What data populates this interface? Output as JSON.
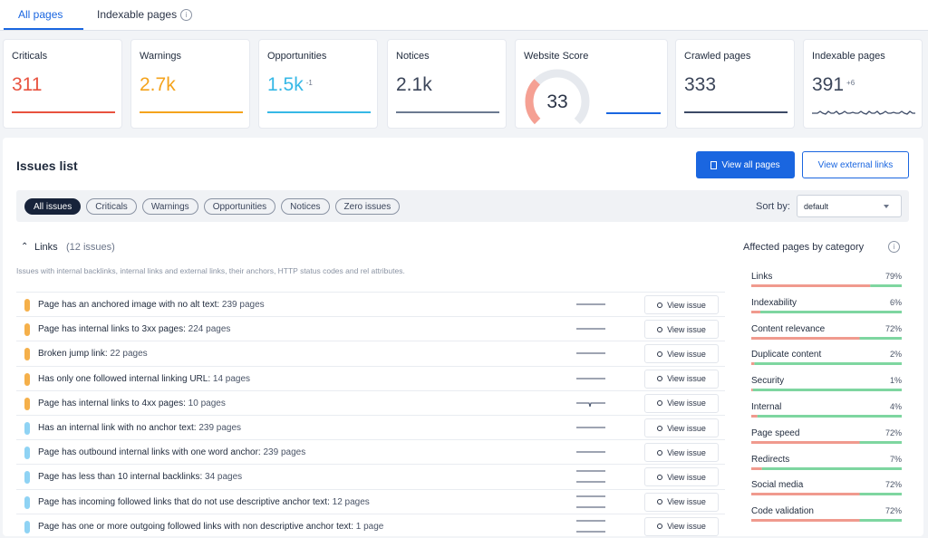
{
  "tabs": [
    "All pages",
    "Indexable pages"
  ],
  "cards": [
    {
      "label": "Criticals",
      "value": "311",
      "color": "#e8523f"
    },
    {
      "label": "Warnings",
      "value": "2.7k",
      "color": "#f4a31c"
    },
    {
      "label": "Opportunities",
      "value": "1.5k",
      "delta": "-1",
      "color": "#36b8e6"
    },
    {
      "label": "Notices",
      "value": "2.1k",
      "color": "#6b7a90"
    },
    {
      "label": "Crawled pages",
      "value": "333",
      "color": "#3c4a66"
    },
    {
      "label": "Indexable pages",
      "value": "391",
      "delta": "+6",
      "color": "#3c4a66"
    }
  ],
  "score": {
    "label": "Website Score",
    "value": 33
  },
  "issues": {
    "title": "Issues list",
    "view_all": "View all pages",
    "view_external": "View external links",
    "filters": [
      "All issues",
      "Criticals",
      "Warnings",
      "Opportunities",
      "Notices",
      "Zero issues"
    ],
    "sort_label": "Sort by:",
    "sort_value": "default",
    "section": {
      "name": "Links",
      "count": "(12 issues)",
      "description": "Issues with internal backlinks, internal links and external links, their anchors, HTTP status codes and rel attributes."
    },
    "view_issue": "View issue",
    "rows": [
      {
        "text": "Page has an anchored image with no alt text:",
        "count": "239 pages",
        "color": "#f5b04a"
      },
      {
        "text": "Page has internal links to 3xx pages:",
        "count": "224 pages",
        "color": "#f5b04a"
      },
      {
        "text": "Broken jump link:",
        "count": "22 pages",
        "color": "#f5b04a"
      },
      {
        "text": "Has only one followed internal linking URL:",
        "count": "14 pages",
        "color": "#f5b04a"
      },
      {
        "text": "Page has internal links to 4xx pages:",
        "count": "10 pages",
        "color": "#f5b04a"
      },
      {
        "text": "Has an internal link with no anchor text:",
        "count": "239 pages",
        "color": "#8fd3f4"
      },
      {
        "text": "Page has outbound internal links with one word anchor:",
        "count": "239 pages",
        "color": "#8fd3f4"
      },
      {
        "text": "Page has less than 10 internal backlinks:",
        "count": "34 pages",
        "color": "#8fd3f4"
      },
      {
        "text": "Page has incoming followed links that do not use descriptive anchor text:",
        "count": "12 pages",
        "color": "#8fd3f4"
      },
      {
        "text": "Page has one or more outgoing followed links with non descriptive anchor text:",
        "count": "1 page",
        "color": "#8fd3f4"
      }
    ]
  },
  "affected": {
    "title": "Affected pages by category",
    "categories": [
      {
        "name": "Links",
        "percent": {
          "value": 79,
          "label": "79%"
        }
      },
      {
        "name": "Indexability",
        "percent": {
          "value": 6,
          "label": "6%"
        }
      },
      {
        "name": "Content relevance",
        "percent": {
          "value": 72,
          "label": "72%"
        }
      },
      {
        "name": "Duplicate content",
        "percent": {
          "value": 2,
          "label": "2%"
        }
      },
      {
        "name": "Security",
        "percent": {
          "value": 1,
          "label": "1%"
        }
      },
      {
        "name": "Internal",
        "percent": {
          "value": 4,
          "label": "4%"
        }
      },
      {
        "name": "Page speed",
        "percent": {
          "value": 72,
          "label": "72%"
        }
      },
      {
        "name": "Redirects",
        "percent": {
          "value": 7,
          "label": "7%"
        }
      },
      {
        "name": "Social media",
        "percent": {
          "value": 72,
          "label": "72%"
        }
      },
      {
        "name": "Code validation",
        "percent": {
          "value": 72,
          "label": "72%"
        }
      }
    ]
  }
}
